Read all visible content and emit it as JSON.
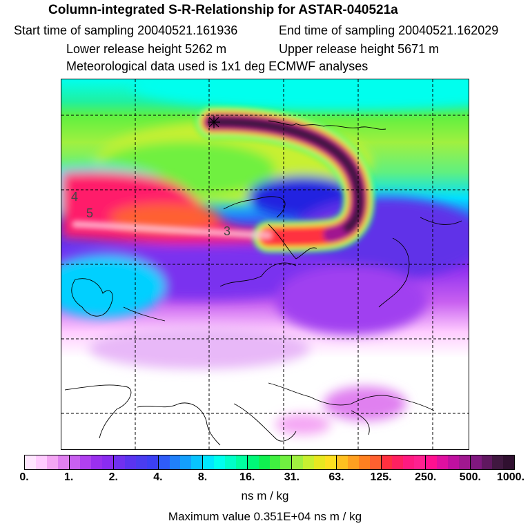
{
  "header": {
    "title": "Column-integrated S-R-Relationship for ASTAR-040521a",
    "start": "Start time of sampling 20040521.161936",
    "end": "End time of sampling 20040521.162029",
    "lower": "Lower release height 5262 m",
    "upper": "Upper release height 5671 m",
    "met": "Meteorological data used is 1x1 deg ECMWF analyses"
  },
  "map": {
    "contour_labels": [
      "4",
      "5",
      "3"
    ]
  },
  "colorbar": {
    "ticks": [
      "0.",
      "1.",
      "2.",
      "4.",
      "8.",
      "16.",
      "31.",
      "63.",
      "125.",
      "250.",
      "500.",
      "1000."
    ],
    "colors": [
      "#ffe6ff",
      "#ffccff",
      "#f4a6f4",
      "#e080f0",
      "#c860f0",
      "#b040f0",
      "#9a30ee",
      "#8a2cf0",
      "#7030f0",
      "#5a34f0",
      "#4a3cf0",
      "#3c40f4",
      "#2f5cf8",
      "#2080fa",
      "#14a0fc",
      "#08c4fe",
      "#00e6ff",
      "#00ffee",
      "#00ffc8",
      "#00ffa0",
      "#00f878",
      "#10f050",
      "#40f040",
      "#70f040",
      "#a0f040",
      "#c8f030",
      "#e8e820",
      "#ffe020",
      "#ffc020",
      "#ffa020",
      "#ff8020",
      "#ff6030",
      "#ff3040",
      "#ff2060",
      "#ff1a80",
      "#ff2090",
      "#ff1090",
      "#e010a0",
      "#c010a0",
      "#a01890",
      "#801880",
      "#601860",
      "#401840",
      "#301030"
    ],
    "units": "ns m / kg",
    "max_value": "Maximum value  0.351E+04 ns m / kg"
  }
}
